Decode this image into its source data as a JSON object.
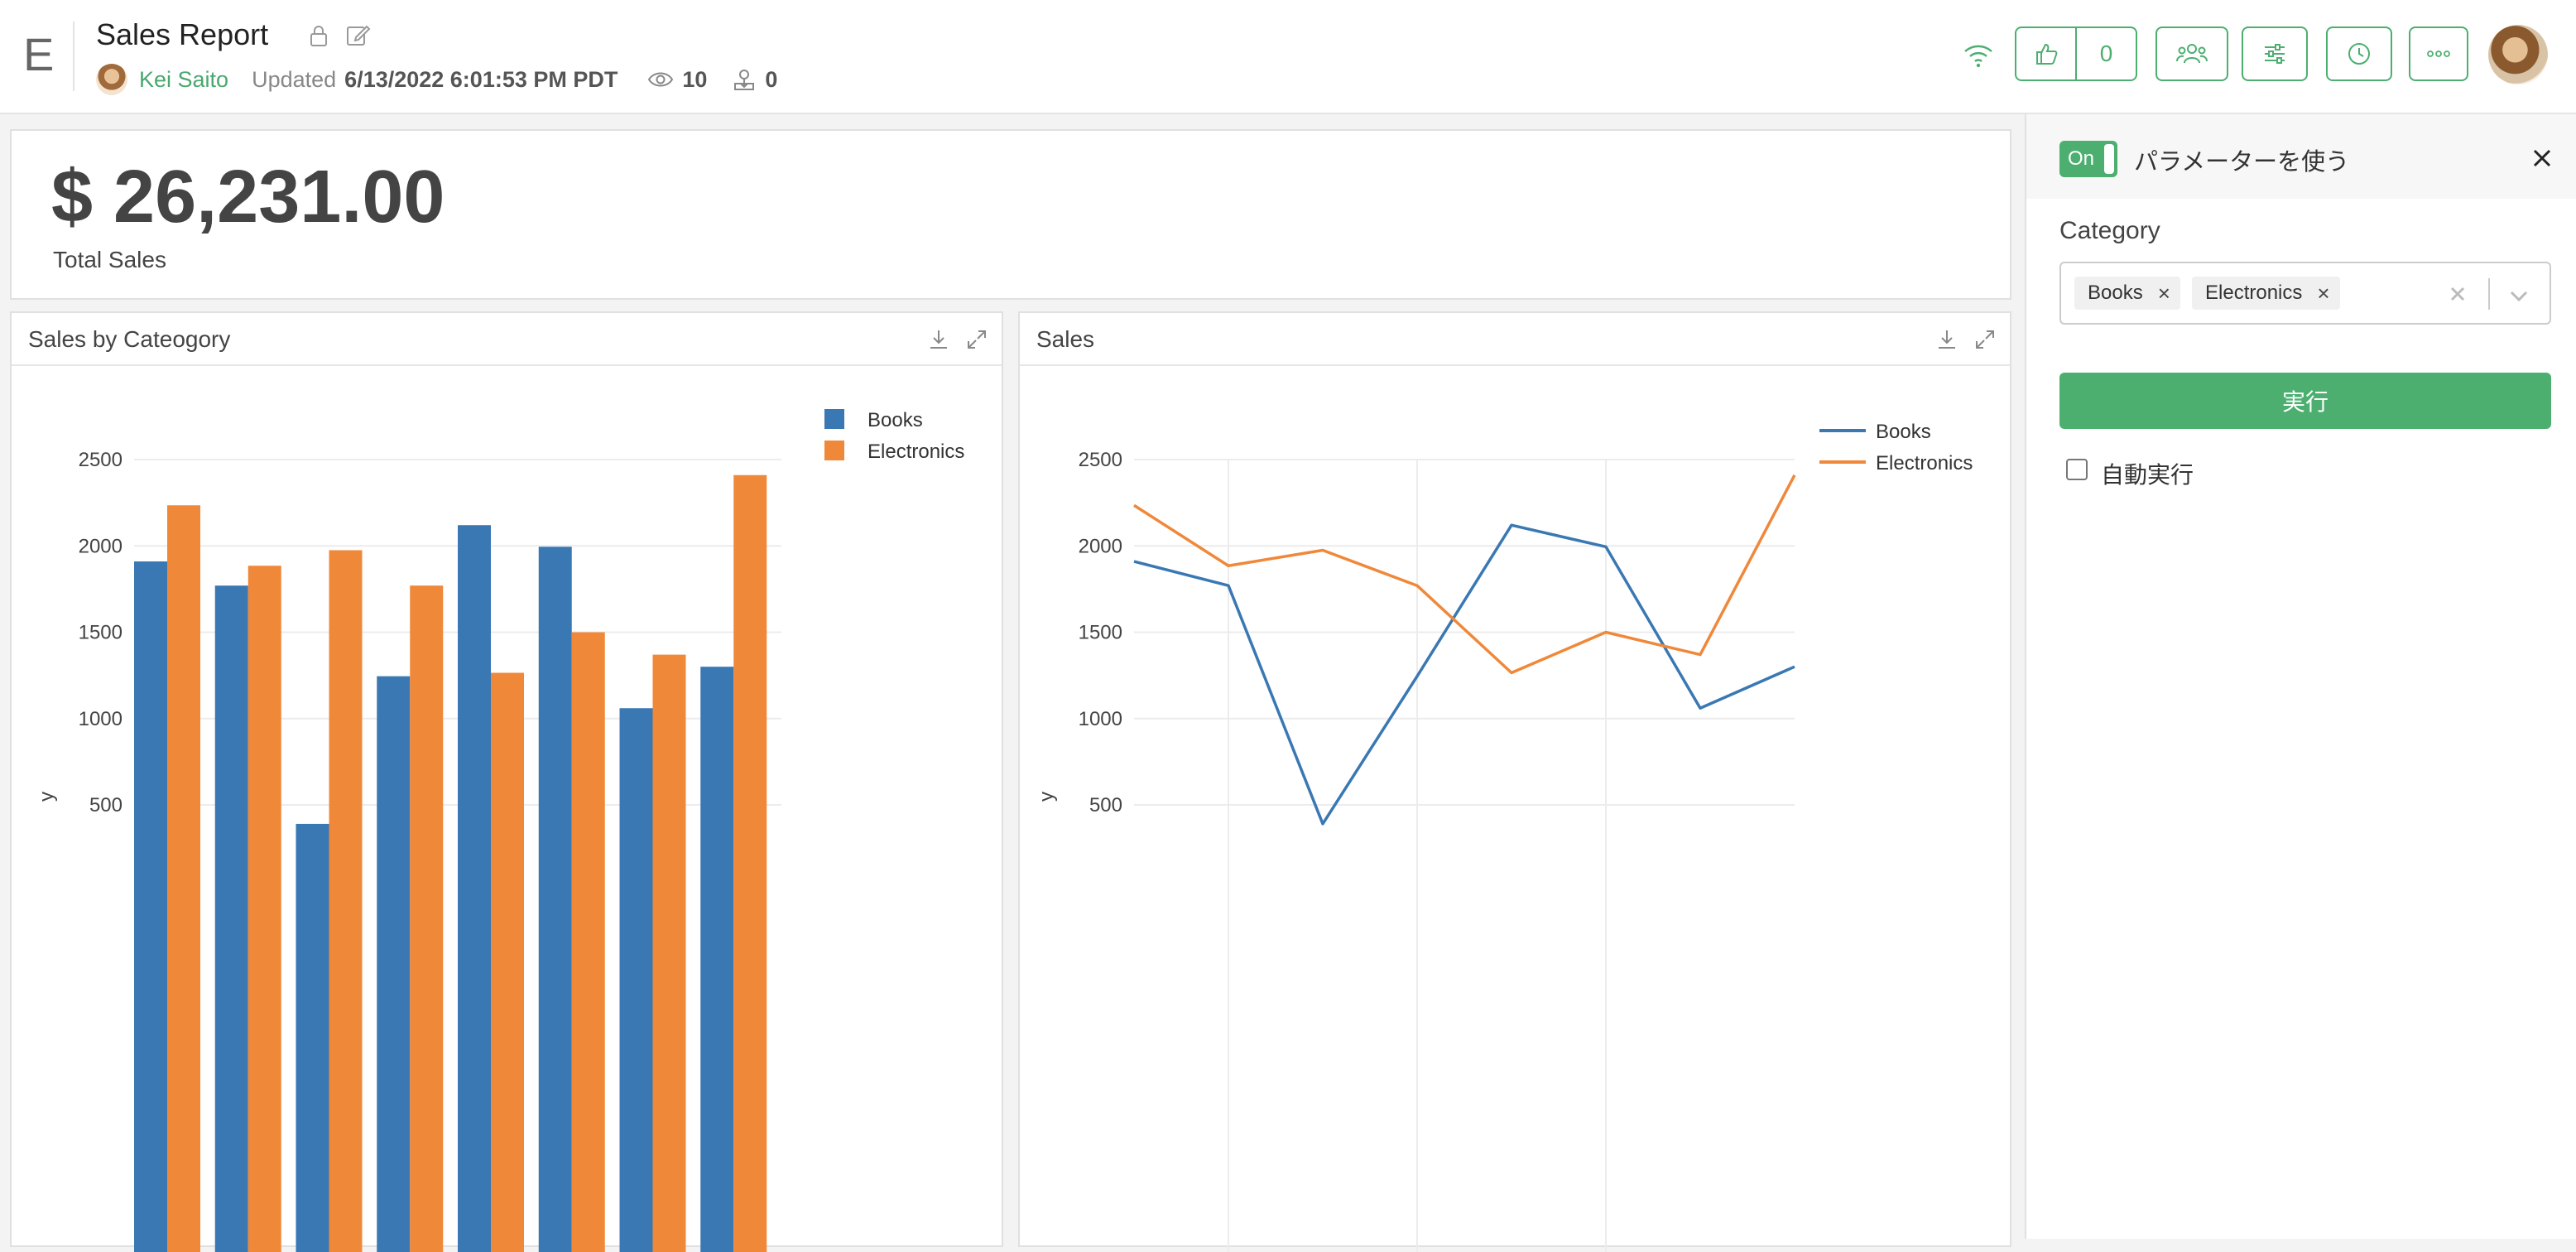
{
  "header": {
    "logo": "E",
    "title": "Sales Report",
    "author": "Kei Saito",
    "updated_label": "Updated",
    "updated_time": "6/13/2022 6:01:53 PM PDT",
    "views": "10",
    "downloads": "0",
    "likes": "0"
  },
  "kpi": {
    "value": "$ 26,231.00",
    "label": "Total Sales"
  },
  "panels": {
    "bar_title": "Sales by Cateogory",
    "line_title": "Sales"
  },
  "side": {
    "toggle_label": "On",
    "title": "パラメーターを使う",
    "category_label": "Category",
    "chips": [
      "Books",
      "Electronics"
    ],
    "run_label": "実行",
    "auto_label": "自動実行"
  },
  "chart_data": [
    {
      "type": "bar",
      "title": "Sales by Cateogory",
      "ylabel": "y",
      "yticks": [
        500,
        1000,
        1500,
        2000,
        2500
      ],
      "ylim": [
        0,
        2500
      ],
      "legend": "top-right",
      "grid": true,
      "series": [
        {
          "name": "Books",
          "color": "#3a78b3",
          "values": [
            1910,
            1770,
            390,
            1245,
            2120,
            1995,
            1060,
            1300
          ]
        },
        {
          "name": "Electronics",
          "color": "#f0883a",
          "values": [
            2235,
            1885,
            1975,
            1770,
            1265,
            1500,
            1370,
            2410
          ]
        }
      ]
    },
    {
      "type": "line",
      "title": "Sales",
      "ylabel": "y",
      "yticks": [
        500,
        1000,
        1500,
        2000,
        2500
      ],
      "ylim": [
        0,
        2500
      ],
      "legend": "top-right",
      "grid": true,
      "series": [
        {
          "name": "Books",
          "color": "#3a78b3",
          "values": [
            1910,
            1770,
            390,
            1245,
            2120,
            1995,
            1060,
            1300
          ]
        },
        {
          "name": "Electronics",
          "color": "#f0883a",
          "values": [
            2235,
            1885,
            1975,
            1770,
            1265,
            1500,
            1370,
            2410
          ]
        }
      ]
    }
  ]
}
